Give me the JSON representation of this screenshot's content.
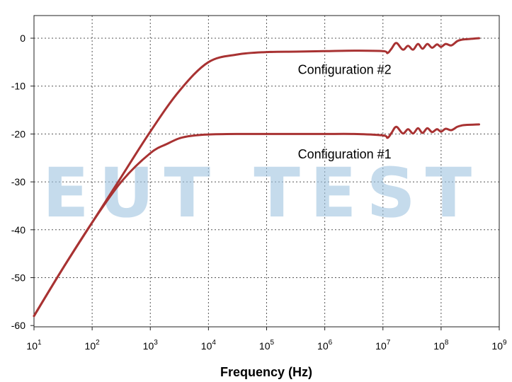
{
  "chart_data": {
    "type": "line",
    "title": "",
    "xlabel": "Frequency (Hz)",
    "ylabel": "",
    "xscale": "log",
    "xlim": [
      10,
      1000000000
    ],
    "ylim": [
      -60,
      5
    ],
    "grid": true,
    "x_ticks": [
      {
        "base": "10",
        "exp": "1"
      },
      {
        "base": "10",
        "exp": "2"
      },
      {
        "base": "10",
        "exp": "3"
      },
      {
        "base": "10",
        "exp": "4"
      },
      {
        "base": "10",
        "exp": "5"
      },
      {
        "base": "10",
        "exp": "6"
      },
      {
        "base": "10",
        "exp": "7"
      },
      {
        "base": "10",
        "exp": "8"
      },
      {
        "base": "10",
        "exp": "9"
      }
    ],
    "y_ticks": [
      "0",
      "-10",
      "-20",
      "-30",
      "-40",
      "-50",
      "-60"
    ],
    "line_color": "#a83232",
    "series": [
      {
        "name": "Configuration #2",
        "x": [
          10,
          31.6,
          100,
          316,
          1000,
          3162,
          10000,
          31623,
          100000,
          316228,
          1000000,
          3162278,
          10000000,
          12000000,
          14000000,
          17000000,
          22000000,
          27000000,
          33000000,
          40000000,
          48000000,
          58000000,
          70000000,
          85000000,
          100000000,
          120000000,
          150000000,
          190000000,
          230000000,
          280000000,
          350000000,
          450000000
        ],
        "y": [
          -58,
          -48,
          -38.5,
          -29,
          -19.5,
          -11,
          -5,
          -3.4,
          -2.9,
          -2.8,
          -2.7,
          -2.6,
          -2.7,
          -3.1,
          -2.2,
          -1,
          -2.4,
          -1.6,
          -2.4,
          -1.2,
          -2.2,
          -1.2,
          -2.0,
          -1.3,
          -1.8,
          -1.2,
          -1.5,
          -0.6,
          -0.3,
          -0.2,
          -0.1,
          0
        ]
      },
      {
        "name": "Configuration #1",
        "x": [
          10,
          31.6,
          100,
          316,
          1000,
          2000,
          3162,
          5000,
          10000,
          31623,
          100000,
          316228,
          1000000,
          3162278,
          10000000,
          12000000,
          14000000,
          17000000,
          22000000,
          27000000,
          33000000,
          40000000,
          48000000,
          58000000,
          70000000,
          85000000,
          100000000,
          120000000,
          150000000,
          190000000,
          230000000,
          280000000,
          350000000,
          450000000
        ],
        "y": [
          -58,
          -48,
          -38.5,
          -30,
          -24,
          -22,
          -20.9,
          -20.4,
          -20.1,
          -20,
          -20,
          -20,
          -20,
          -20,
          -20.3,
          -20.8,
          -19.8,
          -18.5,
          -19.9,
          -19,
          -19.9,
          -18.8,
          -19.8,
          -18.8,
          -19.6,
          -19,
          -19.5,
          -18.9,
          -19.2,
          -18.5,
          -18.2,
          -18.1,
          -18.05,
          -18
        ]
      }
    ],
    "annotations": [
      {
        "text": "Configuration #2",
        "x": 1000000,
        "y": -6.6
      },
      {
        "text": "Configuration #1",
        "x": 1000000,
        "y": -24.2
      }
    ]
  },
  "watermark": {
    "text": "EUT TEST",
    "color": "#9ec3e0"
  }
}
